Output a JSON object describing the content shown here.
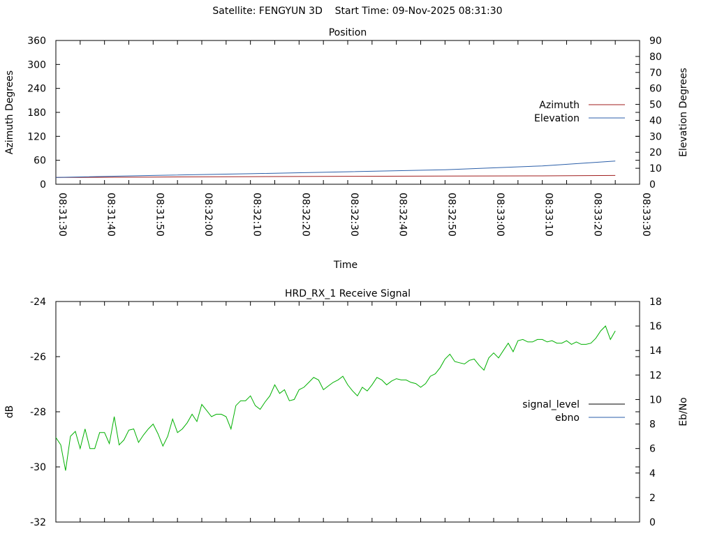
{
  "page": {
    "title": "Satellite: FENGYUN 3D    Start Time: 09-Nov-2025 08:31:30"
  },
  "chart_data": [
    {
      "type": "line",
      "title": "Position",
      "xlabel": "Time",
      "ylabel": "Azimuth Degrees",
      "y2label": "Elevation Degrees",
      "x_tick_labels": [
        "08:31:30",
        "08:31:40",
        "08:31:50",
        "08:32:00",
        "08:32:10",
        "08:32:20",
        "08:32:30",
        "08:32:40",
        "08:32:50",
        "08:33:00",
        "08:33:10",
        "08:33:20",
        "08:33:30"
      ],
      "y_ticks": [
        0,
        60,
        120,
        180,
        240,
        300,
        360
      ],
      "y2_ticks": [
        0,
        10,
        20,
        30,
        40,
        50,
        60,
        70,
        80,
        90
      ],
      "xlim_seconds": [
        0,
        120
      ],
      "ylim": [
        0,
        360
      ],
      "y2lim": [
        0,
        90
      ],
      "grid": false,
      "legend_position": "right",
      "series": [
        {
          "name": "Azimuth",
          "axis": "left",
          "color": "#a01e1e",
          "x": [
            0,
            20,
            40,
            60,
            80,
            100,
            115
          ],
          "values": [
            17,
            18,
            19,
            20,
            20.5,
            21,
            22
          ]
        },
        {
          "name": "Elevation",
          "axis": "right",
          "color": "#2a5ea8",
          "x": [
            0,
            20,
            40,
            60,
            80,
            100,
            115
          ],
          "values": [
            4.3,
            5.5,
            6.6,
            7.8,
            9.1,
            11.5,
            14.5
          ]
        }
      ]
    },
    {
      "type": "line",
      "title": "HRD_RX_1 Receive Signal",
      "ylabel": "dB",
      "y2label": "Eb/No",
      "y_ticks": [
        -32,
        -30,
        -28,
        -26,
        -24
      ],
      "y2_ticks": [
        0,
        2,
        4,
        6,
        8,
        10,
        12,
        14,
        16,
        18
      ],
      "xlim_seconds": [
        0,
        120
      ],
      "ylim": [
        -32,
        -24
      ],
      "y2lim": [
        0,
        18
      ],
      "grid": false,
      "legend_position": "right",
      "series": [
        {
          "name": "signal_level",
          "axis": "left",
          "color": "#000000",
          "x": [],
          "values": []
        },
        {
          "name": "ebno",
          "axis": "right",
          "color": "#00b000",
          "x": [
            0,
            1,
            2,
            3,
            4,
            5,
            6,
            7,
            8,
            9,
            10,
            11,
            12,
            13,
            14,
            15,
            16,
            17,
            18,
            19,
            20,
            21,
            22,
            23,
            24,
            25,
            26,
            27,
            28,
            29,
            30,
            31,
            32,
            33,
            34,
            35,
            36,
            37,
            38,
            39,
            40,
            41,
            42,
            43,
            44,
            45,
            46,
            47,
            48,
            49,
            50,
            51,
            52,
            53,
            54,
            55,
            56,
            57,
            58,
            59,
            60,
            61,
            62,
            63,
            64,
            65,
            66,
            67,
            68,
            69,
            70,
            71,
            72,
            73,
            74,
            75,
            76,
            77,
            78,
            79,
            80,
            81,
            82,
            83,
            84,
            85,
            86,
            87,
            88,
            89,
            90,
            91,
            92,
            93,
            94,
            95,
            96,
            97,
            98,
            99,
            100,
            101,
            102,
            103,
            104,
            105,
            106,
            107,
            108,
            109,
            110,
            111,
            112,
            113,
            114,
            115
          ],
          "values": [
            6.9,
            6.3,
            4.2,
            7.0,
            7.4,
            6.0,
            7.6,
            6.0,
            6.0,
            7.3,
            7.3,
            6.4,
            8.6,
            6.3,
            6.7,
            7.5,
            7.6,
            6.5,
            7.1,
            7.6,
            8.0,
            7.2,
            6.2,
            7.0,
            8.4,
            7.3,
            7.6,
            8.1,
            8.8,
            8.2,
            9.6,
            9.1,
            8.6,
            8.8,
            8.8,
            8.6,
            7.6,
            9.5,
            9.9,
            9.9,
            10.3,
            9.5,
            9.2,
            9.8,
            10.3,
            11.2,
            10.5,
            10.8,
            9.9,
            10.0,
            10.8,
            11.0,
            11.4,
            11.8,
            11.6,
            10.8,
            11.1,
            11.4,
            11.6,
            11.9,
            11.2,
            10.7,
            10.3,
            11.0,
            10.7,
            11.2,
            11.8,
            11.6,
            11.2,
            11.5,
            11.7,
            11.6,
            11.6,
            11.4,
            11.3,
            11.0,
            11.3,
            11.9,
            12.1,
            12.6,
            13.3,
            13.7,
            13.1,
            13.0,
            12.9,
            13.2,
            13.3,
            12.8,
            12.4,
            13.4,
            13.8,
            13.4,
            14.0,
            14.6,
            13.9,
            14.8,
            14.9,
            14.7,
            14.7,
            14.9,
            14.9,
            14.7,
            14.8,
            14.6,
            14.6,
            14.8,
            14.5,
            14.7,
            14.5,
            14.5,
            14.6,
            15.0,
            15.6,
            16.0,
            14.9,
            15.6
          ]
        }
      ]
    }
  ]
}
